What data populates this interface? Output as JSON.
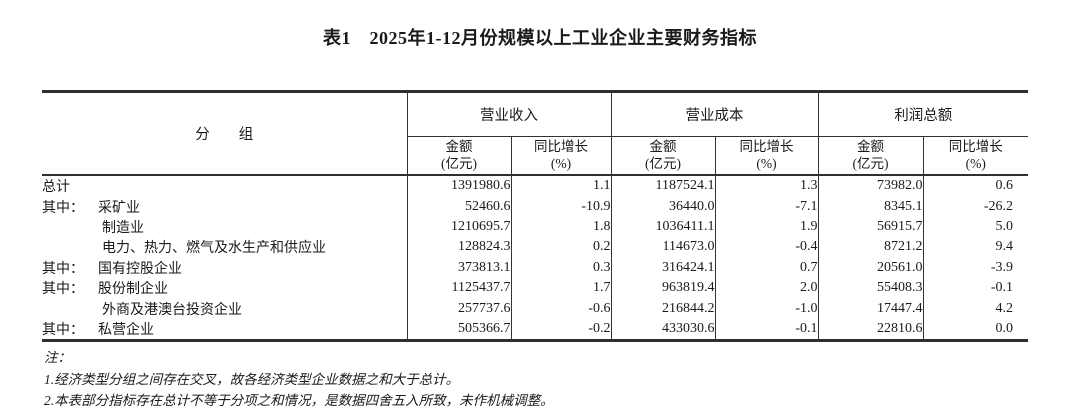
{
  "page": {
    "title": "表1　2025年1-12月份规模以上工业企业主要财务指标"
  },
  "table": {
    "group_column_header": "分　　组",
    "column_groups": [
      {
        "label": "营业收入"
      },
      {
        "label": "营业成本"
      },
      {
        "label": "利润总额"
      }
    ],
    "sub_columns": [
      {
        "line1": "金额",
        "line2": "(亿元)"
      },
      {
        "line1": "同比增长",
        "line2": "(%)"
      },
      {
        "line1": "金额",
        "line2": "(亿元)"
      },
      {
        "line1": "同比增长",
        "line2": "(%)"
      },
      {
        "line1": "金额",
        "line2": "(亿元)"
      },
      {
        "line1": "同比增长",
        "line2": "(%)"
      }
    ],
    "rows": [
      {
        "prefix": "",
        "name": "总计",
        "indent": false,
        "values": [
          "1391980.6",
          "1.1",
          "1187524.1",
          "1.3",
          "73982.0",
          "0.6"
        ]
      },
      {
        "prefix": "其中：",
        "name": "采矿业",
        "indent": true,
        "values": [
          "52460.6",
          "-10.9",
          "36440.0",
          "-7.1",
          "8345.1",
          "-26.2"
        ]
      },
      {
        "prefix": "",
        "name": "制造业",
        "indent": true,
        "values": [
          "1210695.7",
          "1.8",
          "1036411.1",
          "1.9",
          "56915.7",
          "5.0"
        ]
      },
      {
        "prefix": "",
        "name": "电力、热力、燃气及水生产和供应业",
        "indent": true,
        "values": [
          "128824.3",
          "0.2",
          "114673.0",
          "-0.4",
          "8721.2",
          "9.4"
        ]
      },
      {
        "prefix": "其中：",
        "name": "国有控股企业",
        "indent": true,
        "values": [
          "373813.1",
          "0.3",
          "316424.1",
          "0.7",
          "20561.0",
          "-3.9"
        ]
      },
      {
        "prefix": "其中：",
        "name": "股份制企业",
        "indent": true,
        "values": [
          "1125437.7",
          "1.7",
          "963819.4",
          "2.0",
          "55408.3",
          "-0.1"
        ]
      },
      {
        "prefix": "",
        "name": "外商及港澳台投资企业",
        "indent": true,
        "values": [
          "257737.6",
          "-0.6",
          "216844.2",
          "-1.0",
          "17447.4",
          "4.2"
        ]
      },
      {
        "prefix": "其中：",
        "name": "私营企业",
        "indent": true,
        "values": [
          "505366.7",
          "-0.2",
          "433030.6",
          "-0.1",
          "22810.6",
          "0.0"
        ]
      }
    ]
  },
  "notes": {
    "heading": "注：",
    "items": [
      "1.经济类型分组之间存在交叉，故各经济类型企业数据之和大于总计。",
      "2.本表部分指标存在总计不等于分项之和情况，是数据四舍五入所致，未作机械调整。"
    ]
  },
  "colors": {
    "text": "#1a1a1a",
    "line": "#2f2f2f",
    "background": "#ffffff"
  }
}
